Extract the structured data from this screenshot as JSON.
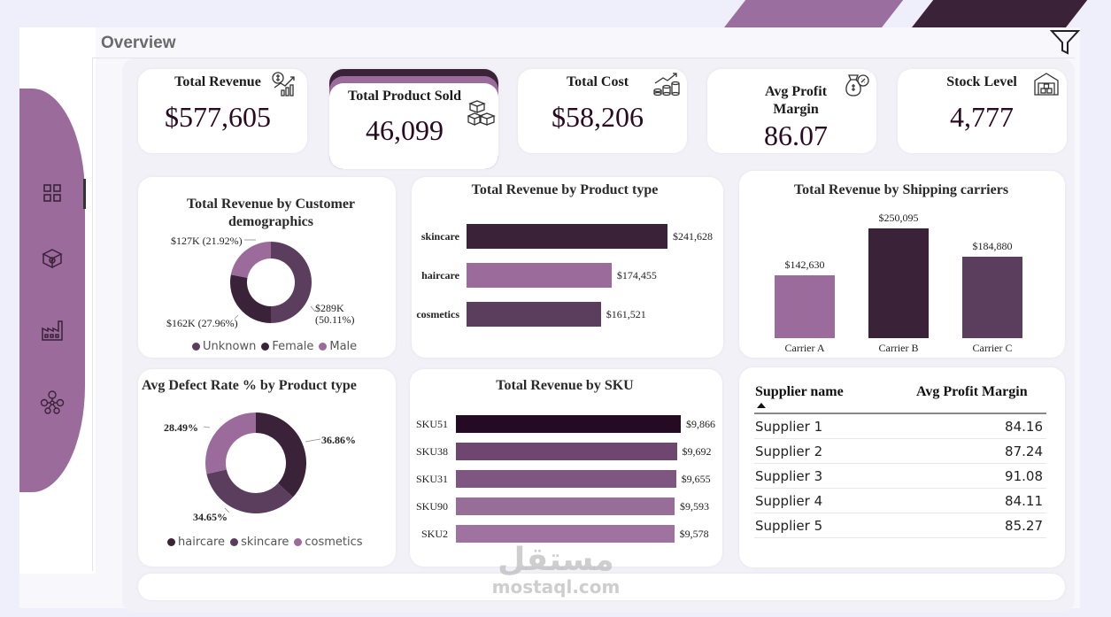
{
  "page": {
    "title": "Overview"
  },
  "nav": {
    "items": [
      "dashboard-icon",
      "product-box-icon",
      "factory-icon",
      "supply-network-icon"
    ]
  },
  "kpis": [
    {
      "label": "Total Revenue",
      "value": "$577,605",
      "icon": "revenue-chart-icon"
    },
    {
      "label": "Total Product Sold",
      "value": "46,099",
      "icon": "boxes-icon"
    },
    {
      "label": "Total Cost",
      "value": "$58,206",
      "icon": "coins-chart-icon"
    },
    {
      "label_line1": "Avg Profit",
      "label_line2": "Margin",
      "value": "86.07",
      "icon": "money-bag-icon"
    },
    {
      "label": "Stock Level",
      "value": "4,777",
      "icon": "warehouse-icon"
    }
  ],
  "demographics": {
    "title_line1": "Total Revenue by Customer",
    "title_line2": "demographics",
    "chart_data": {
      "type": "pie",
      "categories": [
        "Unknown",
        "Female",
        "Male"
      ],
      "values": [
        289,
        162,
        127
      ],
      "percents": [
        50.11,
        27.96,
        21.92
      ],
      "labels": [
        "$289K",
        "(50.11%)",
        "$162K (27.96%)",
        "$127K (21.92%)"
      ],
      "colors": [
        "#5b3d5d",
        "#3a2339",
        "#9b6b9c"
      ],
      "legend": [
        "Unknown",
        "Female",
        "Male"
      ]
    }
  },
  "product_type": {
    "title": "Total Revenue by Product type",
    "chart_data": {
      "type": "bar",
      "categories": [
        "skincare",
        "haircare",
        "cosmetics"
      ],
      "values": [
        241628,
        174455,
        161521
      ],
      "value_labels": [
        "$241,628",
        "$174,455",
        "$161,521"
      ],
      "colors": [
        "#3a2339",
        "#9b6b9c",
        "#5b3d5d"
      ]
    }
  },
  "carriers": {
    "title": "Total Revenue by Shipping carriers",
    "chart_data": {
      "type": "bar",
      "categories": [
        "Carrier A",
        "Carrier B",
        "Carrier C"
      ],
      "values": [
        142630,
        250095,
        184880
      ],
      "value_labels": [
        "$142,630",
        "$250,095",
        "$184,880"
      ],
      "colors": [
        "#9b6b9c",
        "#3a2339",
        "#5b3d5d"
      ]
    }
  },
  "defect": {
    "title": "Avg Defect Rate % by Product type",
    "chart_data": {
      "type": "pie",
      "categories": [
        "haircare",
        "skincare",
        "cosmetics"
      ],
      "values": [
        36.86,
        34.65,
        28.49
      ],
      "labels": [
        "36.86%",
        "34.65%",
        "28.49%"
      ],
      "colors": [
        "#3a2339",
        "#5b3d5d",
        "#9b6b9c"
      ],
      "legend": [
        "haircare",
        "skincare",
        "cosmetics"
      ]
    }
  },
  "sku": {
    "title": "Total Revenue by SKU",
    "chart_data": {
      "type": "bar",
      "categories": [
        "SKU51",
        "SKU38",
        "SKU31",
        "SKU90",
        "SKU2"
      ],
      "values": [
        9866,
        9692,
        9655,
        9593,
        9578
      ],
      "value_labels": [
        "$9,866",
        "$9,692",
        "$9,655",
        "$9,593",
        "$9,578"
      ],
      "colors": [
        "#240a22",
        "#6e4670",
        "#7f5581",
        "#966e98",
        "#9e739f"
      ]
    }
  },
  "suppliers": {
    "columns": [
      "Supplier name",
      "Avg Profit Margin"
    ],
    "rows": [
      {
        "name": "Supplier 1",
        "value": "84.16"
      },
      {
        "name": "Supplier 2",
        "value": "87.24"
      },
      {
        "name": "Supplier 3",
        "value": "91.08"
      },
      {
        "name": "Supplier 4",
        "value": "84.11"
      },
      {
        "name": "Supplier 5",
        "value": "85.27"
      }
    ]
  },
  "watermark": {
    "arabic": "مستقل",
    "latin": "mostaql.com"
  }
}
